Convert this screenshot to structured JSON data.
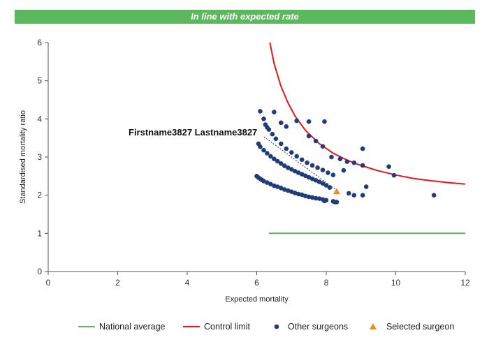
{
  "banner": {
    "text": "In line with expected rate",
    "color": "#5cb85c"
  },
  "chart_data": {
    "type": "scatter",
    "title": "",
    "xlabel": "Expected mortality",
    "ylabel": "Standardised mortality ratio",
    "xlim": [
      0,
      12
    ],
    "ylim": [
      0,
      6
    ],
    "xticks": [
      0,
      2,
      4,
      6,
      8,
      10,
      12
    ],
    "yticks": [
      0,
      1,
      2,
      3,
      4,
      5,
      6
    ],
    "grid": false,
    "legend_position": "bottom",
    "series": [
      {
        "name": "National average",
        "type": "line",
        "color": "#5cb85c",
        "points": [
          [
            6.35,
            1.0
          ],
          [
            12.0,
            1.0
          ]
        ]
      },
      {
        "name": "Control limit",
        "type": "line",
        "color": "#e8141c",
        "points": [
          [
            6.38,
            6.0
          ],
          [
            6.5,
            5.45
          ],
          [
            6.7,
            4.85
          ],
          [
            6.9,
            4.42
          ],
          [
            7.1,
            4.08
          ],
          [
            7.4,
            3.7
          ],
          [
            7.8,
            3.35
          ],
          [
            8.2,
            3.1
          ],
          [
            8.6,
            2.92
          ],
          [
            9.0,
            2.78
          ],
          [
            9.5,
            2.64
          ],
          [
            10.0,
            2.53
          ],
          [
            10.5,
            2.44
          ],
          [
            11.0,
            2.38
          ],
          [
            11.5,
            2.33
          ],
          [
            12.0,
            2.29
          ]
        ]
      },
      {
        "name": "Other surgeons",
        "type": "scatter",
        "color": "#1f3d7a",
        "points": [
          [
            6.0,
            2.5
          ],
          [
            6.05,
            2.46
          ],
          [
            6.1,
            2.43
          ],
          [
            6.15,
            2.4
          ],
          [
            6.2,
            2.37
          ],
          [
            6.3,
            2.33
          ],
          [
            6.4,
            2.29
          ],
          [
            6.5,
            2.25
          ],
          [
            6.6,
            2.22
          ],
          [
            6.7,
            2.19
          ],
          [
            6.8,
            2.15
          ],
          [
            6.9,
            2.12
          ],
          [
            7.0,
            2.09
          ],
          [
            7.1,
            2.06
          ],
          [
            7.2,
            2.03
          ],
          [
            7.3,
            2.01
          ],
          [
            7.4,
            1.98
          ],
          [
            7.5,
            1.96
          ],
          [
            7.6,
            1.94
          ],
          [
            7.7,
            1.92
          ],
          [
            7.8,
            1.91
          ],
          [
            7.9,
            1.89
          ],
          [
            8.0,
            1.87
          ],
          [
            8.2,
            1.84
          ],
          [
            8.3,
            1.82
          ],
          [
            6.05,
            3.35
          ],
          [
            6.1,
            3.27
          ],
          [
            6.2,
            3.18
          ],
          [
            6.3,
            3.1
          ],
          [
            6.4,
            3.02
          ],
          [
            6.5,
            2.95
          ],
          [
            6.6,
            2.89
          ],
          [
            6.7,
            2.83
          ],
          [
            6.8,
            2.77
          ],
          [
            6.9,
            2.72
          ],
          [
            7.0,
            2.68
          ],
          [
            7.1,
            2.63
          ],
          [
            7.2,
            2.59
          ],
          [
            7.3,
            2.55
          ],
          [
            7.4,
            2.51
          ],
          [
            7.5,
            2.47
          ],
          [
            7.6,
            2.43
          ],
          [
            7.7,
            2.39
          ],
          [
            7.8,
            2.35
          ],
          [
            7.9,
            2.31
          ],
          [
            8.0,
            2.26
          ],
          [
            8.1,
            2.2
          ],
          [
            6.25,
            3.85
          ],
          [
            6.3,
            3.78
          ],
          [
            6.35,
            3.72
          ],
          [
            6.45,
            3.6
          ],
          [
            6.55,
            3.48
          ],
          [
            6.7,
            3.35
          ],
          [
            6.85,
            3.22
          ],
          [
            7.0,
            3.12
          ],
          [
            7.15,
            3.02
          ],
          [
            7.3,
            2.93
          ],
          [
            7.45,
            2.85
          ],
          [
            7.6,
            2.78
          ],
          [
            7.75,
            2.72
          ],
          [
            7.9,
            2.66
          ],
          [
            8.05,
            2.59
          ],
          [
            8.2,
            2.53
          ],
          [
            6.1,
            4.2
          ],
          [
            6.2,
            4.0
          ],
          [
            6.5,
            4.18
          ],
          [
            6.7,
            3.9
          ],
          [
            6.85,
            3.8
          ],
          [
            7.15,
            3.95
          ],
          [
            7.5,
            3.93
          ],
          [
            7.95,
            3.93
          ],
          [
            7.5,
            3.55
          ],
          [
            7.7,
            3.42
          ],
          [
            7.9,
            3.28
          ],
          [
            8.15,
            3.0
          ],
          [
            8.4,
            2.95
          ],
          [
            8.6,
            2.88
          ],
          [
            8.8,
            2.85
          ],
          [
            9.05,
            2.78
          ],
          [
            8.5,
            2.65
          ],
          [
            9.05,
            3.22
          ],
          [
            9.8,
            2.75
          ],
          [
            9.95,
            2.52
          ],
          [
            9.15,
            2.22
          ],
          [
            8.65,
            2.05
          ],
          [
            8.8,
            2.0
          ],
          [
            9.05,
            2.0
          ],
          [
            11.1,
            2.0
          ],
          [
            7.95,
            1.85
          ],
          [
            8.25,
            1.82
          ]
        ]
      },
      {
        "name": "Selected surgeon",
        "type": "scatter",
        "marker": "triangle",
        "color": "#ef8c1e",
        "points": [
          [
            8.3,
            2.1
          ]
        ]
      }
    ],
    "annotations": [
      {
        "text": "Firstname3827 Lastname3827",
        "x": 8.3,
        "y": 2.1
      }
    ]
  }
}
